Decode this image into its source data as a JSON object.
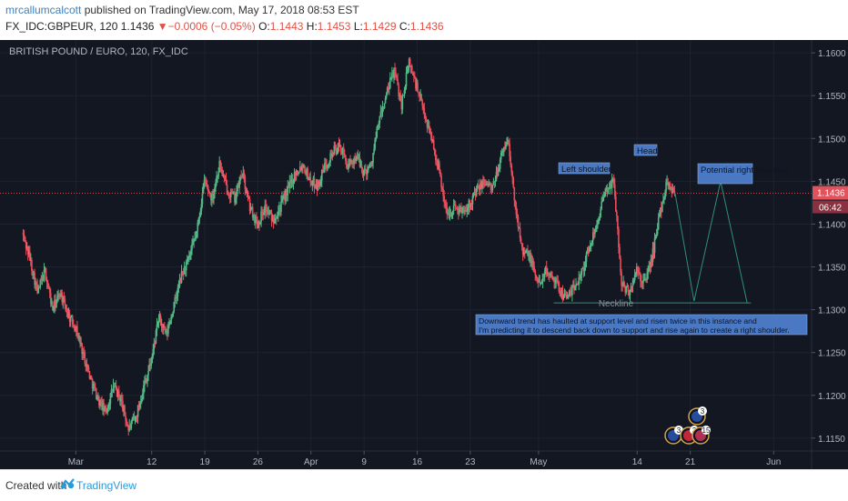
{
  "header": {
    "author": "mrcallumcalcott",
    "published_text": "published on TradingView.com, May 17, 2018 08:53 EST",
    "symbol": "FX_IDC:GBPEUR, 120",
    "last": "1.1436",
    "change": "▼−0.0006 (−0.05%)",
    "open_label": "O:",
    "open": "1.1443",
    "high_label": "H:",
    "high": "1.1453",
    "low_label": "L:",
    "low": "1.1429",
    "close_label": "C:",
    "close": "1.1436"
  },
  "footer": {
    "created_with": "Created with",
    "brand": "TradingView"
  },
  "chart_data": {
    "type": "candlestick",
    "title": "BRITISH POUND / EURO, 120, FX_IDC",
    "y_ticks": [
      "1.1600",
      "1.1550",
      "1.1500",
      "1.1450",
      "1.1400",
      "1.1350",
      "1.1300",
      "1.1250",
      "1.1200",
      "1.1150"
    ],
    "ylim": [
      1.1135,
      1.1615
    ],
    "x_ticks": [
      {
        "label": "Mar",
        "t": 7
      },
      {
        "label": "12",
        "t": 17
      },
      {
        "label": "19",
        "t": 24
      },
      {
        "label": "26",
        "t": 31
      },
      {
        "label": "Apr",
        "t": 38
      },
      {
        "label": "9",
        "t": 45
      },
      {
        "label": "16",
        "t": 52
      },
      {
        "label": "23",
        "t": 59
      },
      {
        "label": "May",
        "t": 68
      },
      {
        "label": "14",
        "t": 81
      },
      {
        "label": "21",
        "t": 88
      },
      {
        "label": "Jun",
        "t": 99
      }
    ],
    "xlim": [
      -3,
      104
    ],
    "last_price": "1.1436",
    "countdown": "06:42",
    "colors": {
      "up": "#53b987",
      "down": "#eb4d5c",
      "background": "#131722",
      "annotation": "#4a78c2",
      "price_line": "#e0525c"
    },
    "price_path": [
      [
        0,
        1.139
      ],
      [
        1,
        1.136
      ],
      [
        2,
        1.132
      ],
      [
        3,
        1.1345
      ],
      [
        4,
        1.13
      ],
      [
        5,
        1.132
      ],
      [
        6,
        1.1295
      ],
      [
        7,
        1.128
      ],
      [
        8,
        1.125
      ],
      [
        9,
        1.122
      ],
      [
        10,
        1.1195
      ],
      [
        11,
        1.118
      ],
      [
        12,
        1.121
      ],
      [
        13,
        1.1195
      ],
      [
        14,
        1.116
      ],
      [
        15,
        1.1175
      ],
      [
        16,
        1.121
      ],
      [
        17,
        1.124
      ],
      [
        18,
        1.129
      ],
      [
        19,
        1.127
      ],
      [
        20,
        1.1305
      ],
      [
        21,
        1.134
      ],
      [
        22,
        1.136
      ],
      [
        23,
        1.139
      ],
      [
        24,
        1.145
      ],
      [
        25,
        1.143
      ],
      [
        26,
        1.147
      ],
      [
        27,
        1.144
      ],
      [
        28,
        1.143
      ],
      [
        29,
        1.146
      ],
      [
        30,
        1.142
      ],
      [
        31,
        1.14
      ],
      [
        32,
        1.142
      ],
      [
        33,
        1.1405
      ],
      [
        34,
        1.142
      ],
      [
        35,
        1.144
      ],
      [
        36,
        1.146
      ],
      [
        37,
        1.147
      ],
      [
        38,
        1.145
      ],
      [
        39,
        1.1445
      ],
      [
        40,
        1.147
      ],
      [
        41,
        1.1485
      ],
      [
        42,
        1.149
      ],
      [
        43,
        1.1465
      ],
      [
        44,
        1.148
      ],
      [
        45,
        1.146
      ],
      [
        46,
        1.147
      ],
      [
        47,
        1.152
      ],
      [
        48,
        1.155
      ],
      [
        49,
        1.158
      ],
      [
        50,
        1.154
      ],
      [
        51,
        1.159
      ],
      [
        52,
        1.156
      ],
      [
        53,
        1.153
      ],
      [
        54,
        1.15
      ],
      [
        55,
        1.146
      ],
      [
        56,
        1.141
      ],
      [
        57,
        1.142
      ],
      [
        58,
        1.1415
      ],
      [
        59,
        1.1425
      ],
      [
        60,
        1.144
      ],
      [
        61,
        1.145
      ],
      [
        62,
        1.144
      ],
      [
        63,
        1.1475
      ],
      [
        64,
        1.15
      ],
      [
        65,
        1.142
      ],
      [
        66,
        1.137
      ],
      [
        67,
        1.136
      ],
      [
        68,
        1.133
      ],
      [
        69,
        1.1345
      ],
      [
        70,
        1.134
      ],
      [
        71,
        1.132
      ],
      [
        72,
        1.1315
      ],
      [
        73,
        1.133
      ],
      [
        74,
        1.135
      ],
      [
        75,
        1.138
      ],
      [
        76,
        1.141
      ],
      [
        77,
        1.144
      ],
      [
        78,
        1.145
      ],
      [
        79,
        1.133
      ],
      [
        80,
        1.132
      ],
      [
        81,
        1.1345
      ],
      [
        82,
        1.133
      ],
      [
        83,
        1.136
      ],
      [
        84,
        1.141
      ],
      [
        85,
        1.145
      ],
      [
        86,
        1.1436
      ]
    ],
    "projection": [
      [
        86,
        1.1436
      ],
      [
        88.5,
        1.131
      ],
      [
        92,
        1.145
      ],
      [
        95.5,
        1.1308
      ]
    ],
    "neckline": {
      "t0": 70,
      "t1": 96,
      "price": 1.1308
    },
    "annotations": {
      "left_shoulder": "Left shoulder",
      "head": "Head",
      "right_shoulder": "Potential right shoulder",
      "neckline": "Neckline",
      "note_line1": "Downward trend has haulted at support level and risen twice in this instance and",
      "note_line2": "I'm predicting it to descend back down to support and rise again to create a right shoulder."
    },
    "events": [
      "3",
      "3",
      "3",
      "15"
    ]
  }
}
